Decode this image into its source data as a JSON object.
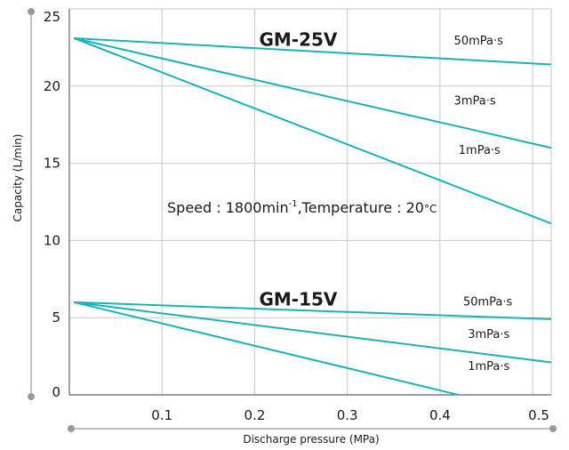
{
  "chart_data": {
    "type": "line",
    "xlabel": "Discharge pressure (MPa)",
    "ylabel": "Capacity (L/min)",
    "xlim": [
      0,
      0.52
    ],
    "ylim": [
      0,
      25
    ],
    "x_ticks": [
      "0.1",
      "0.2",
      "0.3",
      "0.4",
      "0.5"
    ],
    "y_ticks": [
      "0",
      "5",
      "10",
      "15",
      "20",
      "25"
    ],
    "x_tick_values": [
      0.1,
      0.2,
      0.3,
      0.4,
      0.5
    ],
    "y_tick_values": [
      0,
      5,
      10,
      15,
      20,
      25
    ],
    "grid": true,
    "line_color": "#1ab3b8",
    "grid_color": "#c8c8c8",
    "axis_color": "#9a9a9a",
    "annotation": {
      "text": "Speed : 1800min",
      "superscript": "-1",
      "text2": ",Temperature : 20",
      "unit": "°C",
      "x": 0.1,
      "y": 11.8
    },
    "groups": [
      {
        "model": "GM-25V",
        "label_at": [
          0.2,
          22.6
        ],
        "series": [
          {
            "name": "50mPa·s",
            "x": [
              0.005,
              0.52
            ],
            "y": [
              23.1,
              21.4
            ],
            "label_at": [
              0.415,
              22.7
            ]
          },
          {
            "name": "3mPa·s",
            "x": [
              0.005,
              0.52
            ],
            "y": [
              23.1,
              16.0
            ],
            "label_at": [
              0.415,
              18.8
            ]
          },
          {
            "name": "1mPa·s",
            "x": [
              0.005,
              0.52
            ],
            "y": [
              23.1,
              11.1
            ],
            "label_at": [
              0.42,
              15.6
            ]
          }
        ]
      },
      {
        "model": "GM-15V",
        "label_at": [
          0.2,
          5.8
        ],
        "series": [
          {
            "name": "50mPa·s",
            "x": [
              0.005,
              0.52
            ],
            "y": [
              6.0,
              4.9
            ],
            "label_at": [
              0.425,
              5.8
            ]
          },
          {
            "name": "3mPa·s",
            "x": [
              0.005,
              0.52
            ],
            "y": [
              6.0,
              2.1
            ],
            "label_at": [
              0.43,
              3.7
            ]
          },
          {
            "name": "1mPa·s",
            "x": [
              0.005,
              0.42
            ],
            "y": [
              6.0,
              0.0
            ],
            "label_at": [
              0.43,
              1.6
            ]
          }
        ]
      }
    ]
  }
}
